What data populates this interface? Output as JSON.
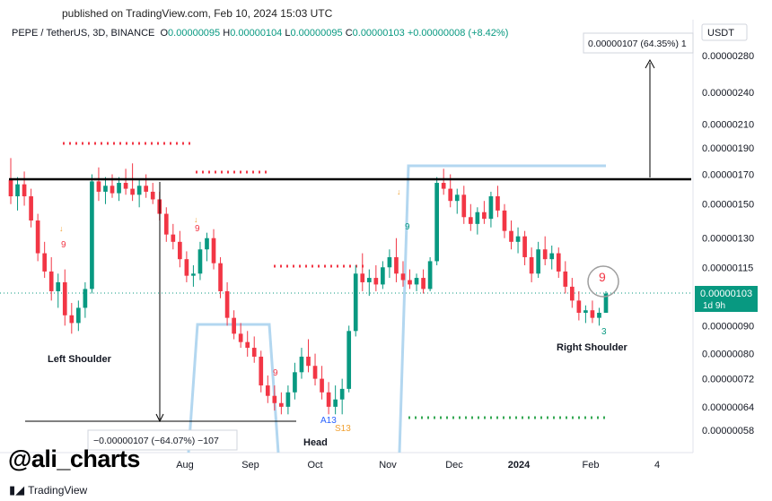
{
  "header": {
    "published": "published on TradingView.com, Feb 10, 2024 15:03 UTC",
    "symbol": "PEPE / TetherUS, 3D, BINANCE",
    "o_label": "O",
    "o_value": "0.00000095",
    "h_label": "H",
    "h_value": "0.00000104",
    "l_label": "L",
    "l_value": "0.00000095",
    "c_label": "C",
    "c_value": "0.00000103",
    "change": "+0.00000008 (+8.42%)"
  },
  "branding": {
    "watermark": "@ali_charts",
    "logo": "TradingView"
  },
  "colors": {
    "up": "#089981",
    "down": "#f23645",
    "price_badge": "#089981",
    "neckline": "#000000",
    "projection_box": "#b3d7f0",
    "red_dots": "#f23645",
    "green_dots": "#34a853",
    "price_line": "#089981"
  },
  "chart_data": {
    "type": "candlestick",
    "currency": "USDT",
    "y_scale": "log",
    "ylim": [
      5.6e-07,
      2.85e-06
    ],
    "y_ticks": [
      "0.00000280",
      "0.00000240",
      "0.00000210",
      "0.00000190",
      "0.00000170",
      "0.00000150",
      "0.00000130",
      "0.00000115",
      "0.00000090",
      "0.00000080",
      "0.00000072",
      "0.00000064",
      "0.00000058"
    ],
    "x_ticks": [
      "Aug",
      "Sep",
      "Oct",
      "Nov",
      "Dec",
      "2024",
      "Feb",
      "4"
    ],
    "current_price": {
      "value": "0.00000103",
      "countdown": "1d 9h"
    },
    "neckline": 1.66e-06,
    "target_label": "0.00000107 (64.35%) 1",
    "decline_label": "−0.00000107 (−64.07%) −107",
    "annotations": [
      "Left Shoulder",
      "Head",
      "Right Shoulder"
    ],
    "td_labels": [
      "9",
      "9",
      "9",
      "9",
      "9",
      "3",
      "A13",
      "S13"
    ],
    "candles": [
      {
        "o": 1.66,
        "h": 1.82,
        "l": 1.5,
        "c": 1.55
      },
      {
        "o": 1.55,
        "h": 1.68,
        "l": 1.46,
        "c": 1.63
      },
      {
        "o": 1.63,
        "h": 1.72,
        "l": 1.49,
        "c": 1.55
      },
      {
        "o": 1.55,
        "h": 1.6,
        "l": 1.36,
        "c": 1.4
      },
      {
        "o": 1.4,
        "h": 1.44,
        "l": 1.18,
        "c": 1.22
      },
      {
        "o": 1.22,
        "h": 1.28,
        "l": 1.1,
        "c": 1.13
      },
      {
        "o": 1.13,
        "h": 1.2,
        "l": 1.0,
        "c": 1.04
      },
      {
        "o": 1.04,
        "h": 1.12,
        "l": 0.97,
        "c": 1.08
      },
      {
        "o": 1.08,
        "h": 1.14,
        "l": 0.9,
        "c": 0.94
      },
      {
        "o": 0.94,
        "h": 0.99,
        "l": 0.87,
        "c": 0.91
      },
      {
        "o": 0.91,
        "h": 1.0,
        "l": 0.88,
        "c": 0.97
      },
      {
        "o": 0.97,
        "h": 1.08,
        "l": 0.93,
        "c": 1.05
      },
      {
        "o": 1.05,
        "h": 1.7,
        "l": 1.03,
        "c": 1.65
      },
      {
        "o": 1.65,
        "h": 1.75,
        "l": 1.52,
        "c": 1.58
      },
      {
        "o": 1.58,
        "h": 1.68,
        "l": 1.5,
        "c": 1.62
      },
      {
        "o": 1.62,
        "h": 1.7,
        "l": 1.54,
        "c": 1.57
      },
      {
        "o": 1.57,
        "h": 1.68,
        "l": 1.52,
        "c": 1.64
      },
      {
        "o": 1.64,
        "h": 1.74,
        "l": 1.56,
        "c": 1.6
      },
      {
        "o": 1.6,
        "h": 1.78,
        "l": 1.52,
        "c": 1.56
      },
      {
        "o": 1.56,
        "h": 1.66,
        "l": 1.48,
        "c": 1.62
      },
      {
        "o": 1.62,
        "h": 1.7,
        "l": 1.54,
        "c": 1.58
      },
      {
        "o": 1.58,
        "h": 1.64,
        "l": 1.5,
        "c": 1.53
      },
      {
        "o": 1.53,
        "h": 1.58,
        "l": 1.4,
        "c": 1.44
      },
      {
        "o": 1.44,
        "h": 1.48,
        "l": 1.28,
        "c": 1.32
      },
      {
        "o": 1.32,
        "h": 1.38,
        "l": 1.24,
        "c": 1.28
      },
      {
        "o": 1.28,
        "h": 1.34,
        "l": 1.15,
        "c": 1.19
      },
      {
        "o": 1.19,
        "h": 1.23,
        "l": 1.08,
        "c": 1.11
      },
      {
        "o": 1.11,
        "h": 1.16,
        "l": 1.06,
        "c": 1.12
      },
      {
        "o": 1.12,
        "h": 1.28,
        "l": 1.09,
        "c": 1.24
      },
      {
        "o": 1.24,
        "h": 1.33,
        "l": 1.18,
        "c": 1.3
      },
      {
        "o": 1.3,
        "h": 1.35,
        "l": 1.14,
        "c": 1.17
      },
      {
        "o": 1.17,
        "h": 1.2,
        "l": 1.01,
        "c": 1.04
      },
      {
        "o": 1.04,
        "h": 1.08,
        "l": 0.9,
        "c": 0.93
      },
      {
        "o": 0.93,
        "h": 0.96,
        "l": 0.85,
        "c": 0.87
      },
      {
        "o": 0.87,
        "h": 0.91,
        "l": 0.82,
        "c": 0.84
      },
      {
        "o": 0.84,
        "h": 0.88,
        "l": 0.79,
        "c": 0.82
      },
      {
        "o": 0.82,
        "h": 0.86,
        "l": 0.77,
        "c": 0.79
      },
      {
        "o": 0.79,
        "h": 0.81,
        "l": 0.68,
        "c": 0.7
      },
      {
        "o": 0.7,
        "h": 0.73,
        "l": 0.65,
        "c": 0.67
      },
      {
        "o": 0.67,
        "h": 0.7,
        "l": 0.63,
        "c": 0.65
      },
      {
        "o": 0.65,
        "h": 0.68,
        "l": 0.62,
        "c": 0.64
      },
      {
        "o": 0.64,
        "h": 0.7,
        "l": 0.62,
        "c": 0.68
      },
      {
        "o": 0.68,
        "h": 0.77,
        "l": 0.66,
        "c": 0.74
      },
      {
        "o": 0.74,
        "h": 0.82,
        "l": 0.72,
        "c": 0.79
      },
      {
        "o": 0.79,
        "h": 0.85,
        "l": 0.74,
        "c": 0.76
      },
      {
        "o": 0.76,
        "h": 0.8,
        "l": 0.7,
        "c": 0.72
      },
      {
        "o": 0.72,
        "h": 0.76,
        "l": 0.66,
        "c": 0.68
      },
      {
        "o": 0.68,
        "h": 0.71,
        "l": 0.62,
        "c": 0.64
      },
      {
        "o": 0.64,
        "h": 0.7,
        "l": 0.62,
        "c": 0.66
      },
      {
        "o": 0.66,
        "h": 0.72,
        "l": 0.62,
        "c": 0.69
      },
      {
        "o": 0.69,
        "h": 0.9,
        "l": 0.68,
        "c": 0.88
      },
      {
        "o": 0.88,
        "h": 1.16,
        "l": 0.86,
        "c": 1.12
      },
      {
        "o": 1.12,
        "h": 1.22,
        "l": 1.04,
        "c": 1.08
      },
      {
        "o": 1.08,
        "h": 1.14,
        "l": 1.02,
        "c": 1.1
      },
      {
        "o": 1.1,
        "h": 1.16,
        "l": 1.04,
        "c": 1.07
      },
      {
        "o": 1.07,
        "h": 1.18,
        "l": 1.05,
        "c": 1.15
      },
      {
        "o": 1.15,
        "h": 1.24,
        "l": 1.1,
        "c": 1.2
      },
      {
        "o": 1.2,
        "h": 1.3,
        "l": 1.08,
        "c": 1.12
      },
      {
        "o": 1.12,
        "h": 1.18,
        "l": 1.06,
        "c": 1.09
      },
      {
        "o": 1.09,
        "h": 1.14,
        "l": 1.05,
        "c": 1.07
      },
      {
        "o": 1.07,
        "h": 1.12,
        "l": 1.04,
        "c": 1.1
      },
      {
        "o": 1.1,
        "h": 1.14,
        "l": 1.03,
        "c": 1.05
      },
      {
        "o": 1.05,
        "h": 1.2,
        "l": 1.04,
        "c": 1.18
      },
      {
        "o": 1.18,
        "h": 1.68,
        "l": 1.16,
        "c": 1.64
      },
      {
        "o": 1.64,
        "h": 1.74,
        "l": 1.56,
        "c": 1.6
      },
      {
        "o": 1.6,
        "h": 1.7,
        "l": 1.48,
        "c": 1.52
      },
      {
        "o": 1.52,
        "h": 1.6,
        "l": 1.44,
        "c": 1.56
      },
      {
        "o": 1.56,
        "h": 1.62,
        "l": 1.38,
        "c": 1.42
      },
      {
        "o": 1.42,
        "h": 1.5,
        "l": 1.34,
        "c": 1.38
      },
      {
        "o": 1.38,
        "h": 1.48,
        "l": 1.32,
        "c": 1.45
      },
      {
        "o": 1.45,
        "h": 1.52,
        "l": 1.38,
        "c": 1.41
      },
      {
        "o": 1.41,
        "h": 1.58,
        "l": 1.36,
        "c": 1.55
      },
      {
        "o": 1.55,
        "h": 1.62,
        "l": 1.42,
        "c": 1.46
      },
      {
        "o": 1.46,
        "h": 1.5,
        "l": 1.3,
        "c": 1.34
      },
      {
        "o": 1.34,
        "h": 1.4,
        "l": 1.24,
        "c": 1.28
      },
      {
        "o": 1.28,
        "h": 1.36,
        "l": 1.22,
        "c": 1.31
      },
      {
        "o": 1.31,
        "h": 1.34,
        "l": 1.16,
        "c": 1.2
      },
      {
        "o": 1.2,
        "h": 1.25,
        "l": 1.08,
        "c": 1.12
      },
      {
        "o": 1.12,
        "h": 1.28,
        "l": 1.1,
        "c": 1.24
      },
      {
        "o": 1.24,
        "h": 1.31,
        "l": 1.16,
        "c": 1.19
      },
      {
        "o": 1.19,
        "h": 1.26,
        "l": 1.14,
        "c": 1.22
      },
      {
        "o": 1.22,
        "h": 1.25,
        "l": 1.1,
        "c": 1.13
      },
      {
        "o": 1.13,
        "h": 1.18,
        "l": 1.03,
        "c": 1.06
      },
      {
        "o": 1.06,
        "h": 1.1,
        "l": 0.97,
        "c": 1.0
      },
      {
        "o": 1.0,
        "h": 1.04,
        "l": 0.92,
        "c": 0.95
      },
      {
        "o": 0.95,
        "h": 0.98,
        "l": 0.91,
        "c": 0.96
      },
      {
        "o": 0.96,
        "h": 1.0,
        "l": 0.91,
        "c": 0.93
      },
      {
        "o": 0.93,
        "h": 0.97,
        "l": 0.9,
        "c": 0.95
      },
      {
        "o": 0.95,
        "h": 1.04,
        "l": 0.95,
        "c": 1.03
      }
    ]
  }
}
